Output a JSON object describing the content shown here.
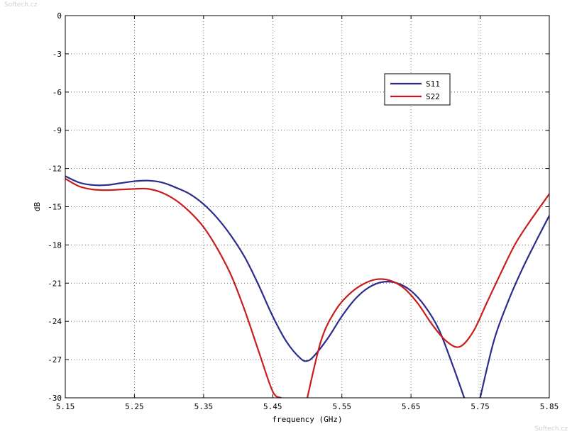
{
  "watermark_top": "Softech.cz",
  "watermark_bottom": "Softech.cz",
  "chart_data": {
    "type": "line",
    "title": "",
    "xlabel": "frequency (GHz)",
    "ylabel": "dB",
    "xlim": [
      5.15,
      5.85
    ],
    "ylim": [
      -30,
      0
    ],
    "xticks": [
      "5.15",
      "5.25",
      "5.35",
      "5.45",
      "5.55",
      "5.65",
      "5.75",
      "5.85"
    ],
    "yticks": [
      "0",
      "-3",
      "-6",
      "-9",
      "-12",
      "-15",
      "-18",
      "-21",
      "-24",
      "-27",
      "-30"
    ],
    "grid": true,
    "legend_position": "top-right",
    "colors": {
      "S11": "#2c2c8c",
      "S22": "#c81e1e"
    },
    "series": [
      {
        "name": "S11",
        "x": [
          5.15,
          5.17,
          5.19,
          5.21,
          5.23,
          5.25,
          5.27,
          5.29,
          5.31,
          5.33,
          5.35,
          5.37,
          5.39,
          5.41,
          5.43,
          5.45,
          5.47,
          5.49,
          5.5,
          5.51,
          5.53,
          5.55,
          5.57,
          5.59,
          5.61,
          5.63,
          5.65,
          5.67,
          5.69,
          5.71,
          5.727,
          5.75,
          5.77,
          5.79,
          5.81,
          5.83,
          5.85
        ],
        "y": [
          -12.6,
          -13.1,
          -13.3,
          -13.3,
          -13.15,
          -13.0,
          -12.95,
          -13.1,
          -13.5,
          -14.0,
          -14.8,
          -15.9,
          -17.3,
          -19.0,
          -21.2,
          -23.6,
          -25.6,
          -26.9,
          -27.1,
          -26.7,
          -25.3,
          -23.6,
          -22.2,
          -21.3,
          -20.9,
          -21.0,
          -21.6,
          -22.8,
          -24.6,
          -27.4,
          -30.0,
          -30.0,
          -25.5,
          -22.5,
          -20.0,
          -17.8,
          -15.7
        ]
      },
      {
        "name": "S22",
        "x": [
          5.15,
          5.17,
          5.19,
          5.21,
          5.23,
          5.25,
          5.27,
          5.29,
          5.31,
          5.33,
          5.35,
          5.37,
          5.39,
          5.41,
          5.43,
          5.45,
          5.462,
          5.5,
          5.52,
          5.54,
          5.56,
          5.58,
          5.6,
          5.62,
          5.64,
          5.66,
          5.68,
          5.7,
          5.72,
          5.74,
          5.76,
          5.78,
          5.8,
          5.82,
          5.85
        ],
        "y": [
          -12.8,
          -13.4,
          -13.65,
          -13.7,
          -13.65,
          -13.6,
          -13.6,
          -13.9,
          -14.5,
          -15.4,
          -16.6,
          -18.3,
          -20.4,
          -23.2,
          -26.4,
          -29.5,
          -30.0,
          -30.0,
          -25.5,
          -23.2,
          -21.9,
          -21.1,
          -20.7,
          -20.8,
          -21.4,
          -22.6,
          -24.2,
          -25.5,
          -26.0,
          -24.8,
          -22.5,
          -20.2,
          -18.0,
          -16.3,
          -14.0
        ]
      }
    ]
  }
}
